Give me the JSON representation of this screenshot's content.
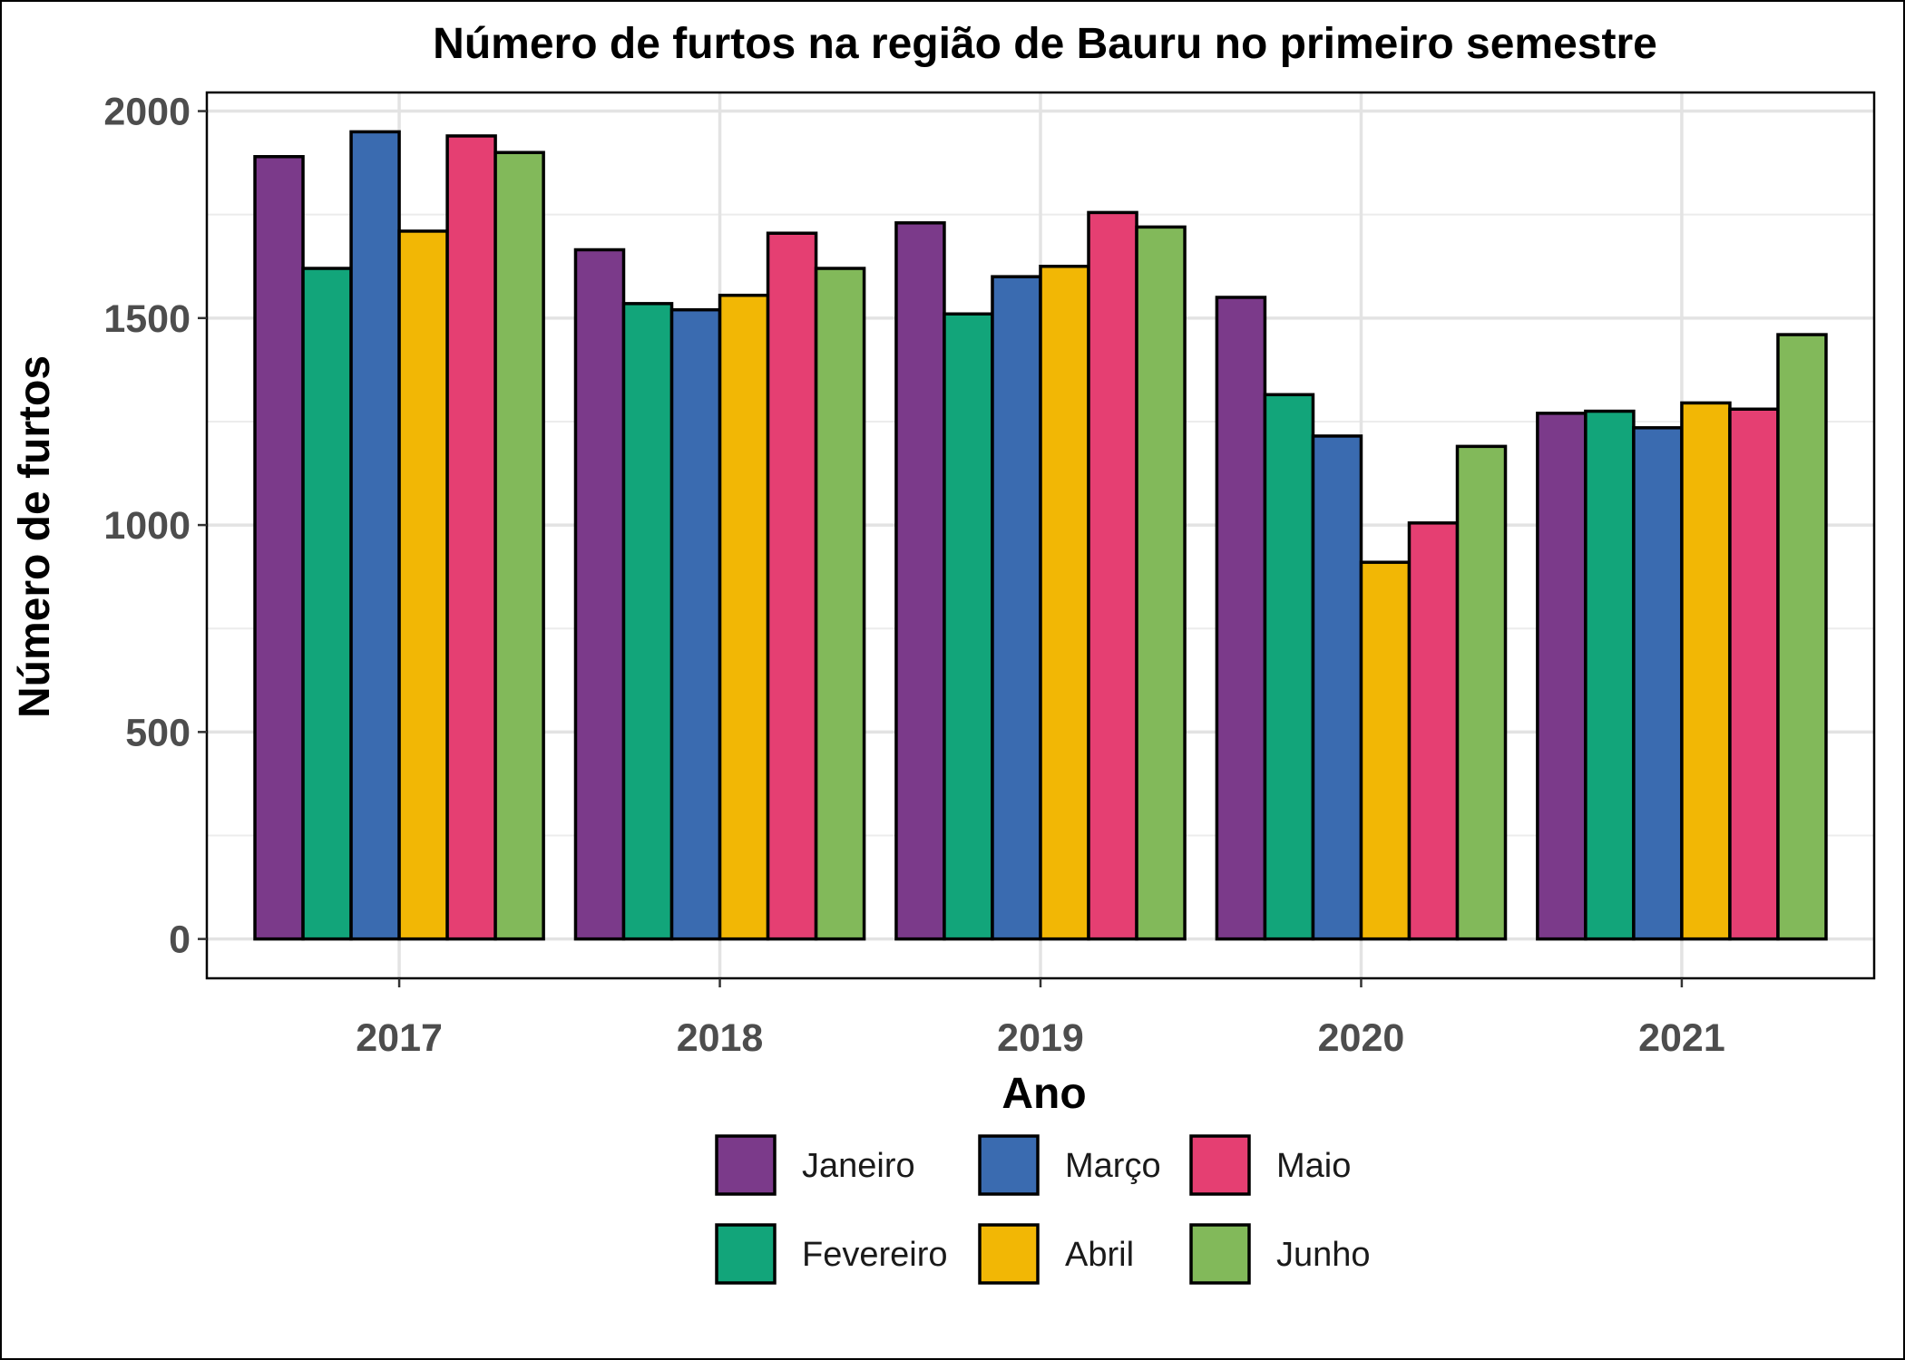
{
  "chart_data": {
    "type": "bar",
    "title": "Número de furtos na região de Bauru no primeiro semestre",
    "xlabel": "Ano",
    "ylabel": "Número de furtos",
    "categories": [
      "2017",
      "2018",
      "2019",
      "2020",
      "2021"
    ],
    "ylim": [
      -95,
      2045
    ],
    "yticks": [
      0,
      500,
      1000,
      1500,
      2000
    ],
    "grid": true,
    "legend_position": "bottom",
    "series": [
      {
        "name": "Janeiro",
        "color": "#7B3A8A",
        "values": [
          1890,
          1665,
          1730,
          1550,
          1270
        ]
      },
      {
        "name": "Fevereiro",
        "color": "#12A57A",
        "values": [
          1620,
          1535,
          1510,
          1315,
          1275
        ]
      },
      {
        "name": "Março",
        "color": "#3A6BB0",
        "values": [
          1950,
          1520,
          1600,
          1215,
          1235
        ]
      },
      {
        "name": "Abril",
        "color": "#F2B705",
        "values": [
          1710,
          1555,
          1625,
          910,
          1295
        ]
      },
      {
        "name": "Maio",
        "color": "#E53F72",
        "values": [
          1940,
          1705,
          1755,
          1005,
          1280
        ]
      },
      {
        "name": "Junho",
        "color": "#82B95A",
        "values": [
          1900,
          1620,
          1720,
          1190,
          1460
        ]
      }
    ]
  }
}
